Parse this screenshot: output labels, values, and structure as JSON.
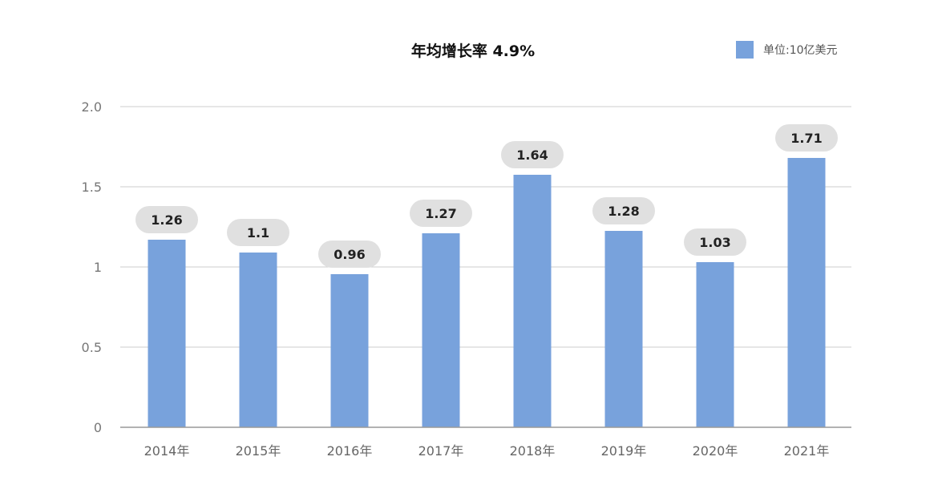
{
  "chart_data": {
    "type": "bar",
    "title": "年均增长率 4.9%",
    "categories": [
      "2014年",
      "2015年",
      "2016年",
      "2017年",
      "2018年",
      "2019年",
      "2020年",
      "2021年"
    ],
    "series": [
      {
        "name": "单位:10亿美元",
        "values": [
          1.26,
          1.1,
          0.96,
          1.27,
          1.64,
          1.28,
          1.03,
          1.71
        ],
        "bar_values": [
          1.17,
          1.09,
          0.955,
          1.21,
          1.575,
          1.225,
          1.03,
          1.68
        ],
        "value_labels": [
          "1.26",
          "1.1",
          "0.96",
          "1.27",
          "1.64",
          "1.28",
          "1.03",
          "1.71"
        ]
      }
    ],
    "yticks": [
      "0",
      "0.5",
      "1",
      "1.5",
      "2.0"
    ],
    "ylim": [
      0,
      2.0
    ],
    "xlabel": "",
    "ylabel": "",
    "grid": true,
    "legend_position": "top-right",
    "colors": {
      "bar": "#78a2dc",
      "label_bubble": "#e0e0e0",
      "grid": "#cccccc",
      "axis": "#999999"
    }
  }
}
